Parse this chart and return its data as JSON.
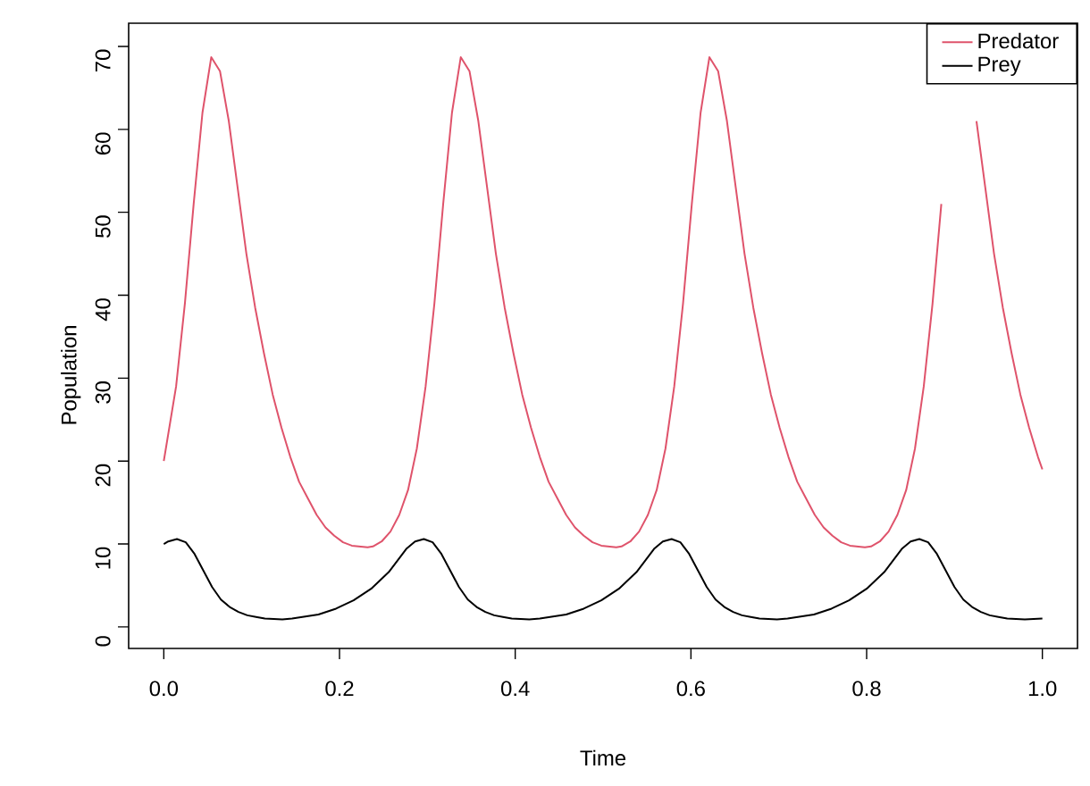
{
  "chart_data": {
    "type": "line",
    "xlabel": "Time",
    "ylabel": "Population",
    "xlim": [
      -0.04,
      1.04
    ],
    "ylim": [
      -2.6,
      72.8
    ],
    "xticks": [
      {
        "value": 0,
        "label": "0.0"
      },
      {
        "value": 0.2,
        "label": "0.2"
      },
      {
        "value": 0.4,
        "label": "0.4"
      },
      {
        "value": 0.6,
        "label": "0.6"
      },
      {
        "value": 0.8,
        "label": "0.8"
      },
      {
        "value": 1,
        "label": "1.0"
      }
    ],
    "yticks": [
      0,
      10,
      20,
      30,
      40,
      50,
      60,
      70
    ],
    "legend": "top right",
    "series": [
      {
        "name": "Predator",
        "color": "#df536b",
        "x": [
          0,
          0.014,
          0.024,
          0.034,
          0.044,
          0.054,
          0.064,
          0.074,
          0.084,
          0.094,
          0.104,
          0.114,
          0.124,
          0.134,
          0.144,
          0.154,
          0.164,
          0.174,
          0.184,
          0.194,
          0.204,
          0.214,
          0.232,
          0.238,
          0.248,
          0.258,
          0.268,
          0.278,
          0.288,
          0.298,
          0.308,
          0.318,
          0.328,
          0.338,
          0.348,
          0.358,
          0.368,
          0.378,
          0.388,
          0.398,
          0.408,
          0.418,
          0.428,
          0.438,
          0.448,
          0.458,
          0.468,
          0.478,
          0.488,
          0.498,
          0.515,
          0.521,
          0.531,
          0.541,
          0.551,
          0.561,
          0.571,
          0.581,
          0.591,
          0.601,
          0.611,
          0.621,
          0.631,
          0.641,
          0.651,
          0.661,
          0.671,
          0.681,
          0.691,
          0.701,
          0.711,
          0.721,
          0.731,
          0.741,
          0.751,
          0.761,
          0.771,
          0.781,
          0.798,
          0.805,
          0.815,
          0.825,
          0.835,
          0.845,
          0.855,
          0.865,
          0.875,
          0.885,
          0.895,
          0.905,
          0.915,
          0.925,
          0.935,
          0.945,
          0.955,
          0.965,
          0.975,
          0.985,
          0.995,
          1.0
        ],
        "values": [
          20,
          29,
          39,
          51,
          62,
          68.7,
          67,
          61,
          53,
          45,
          38.5,
          33,
          28,
          24,
          20.5,
          17.5,
          15.5,
          13.5,
          12,
          11,
          10.2,
          9.8,
          9.6,
          9.7,
          10.3,
          11.5,
          13.5,
          16.5,
          21.5,
          29,
          39,
          51,
          62,
          68.7,
          67,
          61,
          53,
          45,
          38.5,
          33,
          28,
          24,
          20.5,
          17.5,
          15.5,
          13.5,
          12,
          11,
          10.2,
          9.8,
          9.6,
          9.7,
          10.3,
          11.5,
          13.5,
          16.5,
          21.5,
          29,
          39,
          51,
          62,
          68.7,
          67,
          61,
          53,
          45,
          38.5,
          33,
          28,
          24,
          20.5,
          17.5,
          15.5,
          13.5,
          12,
          11,
          10.2,
          9.8,
          9.6,
          9.7,
          10.3,
          11.5,
          13.5,
          16.5,
          21.5,
          29,
          39,
          51,
          null,
          null,
          null,
          61,
          53,
          45,
          38.5,
          33,
          28,
          24,
          20.5,
          19
        ]
      },
      {
        "name": "Prey",
        "color": "#000000",
        "x": [
          0,
          0.005,
          0.015,
          0.025,
          0.035,
          0.045,
          0.055,
          0.065,
          0.075,
          0.085,
          0.095,
          0.105,
          0.115,
          0.135,
          0.146,
          0.176,
          0.196,
          0.216,
          0.236,
          0.256,
          0.266,
          0.276,
          0.286,
          0.296,
          0.306,
          0.316,
          0.326,
          0.336,
          0.346,
          0.356,
          0.366,
          0.376,
          0.386,
          0.396,
          0.416,
          0.428,
          0.458,
          0.478,
          0.498,
          0.518,
          0.538,
          0.548,
          0.558,
          0.568,
          0.578,
          0.588,
          0.598,
          0.608,
          0.618,
          0.628,
          0.638,
          0.648,
          0.658,
          0.668,
          0.678,
          0.698,
          0.71,
          0.74,
          0.76,
          0.78,
          0.8,
          0.82,
          0.83,
          0.84,
          0.85,
          0.86,
          0.87,
          0.88,
          0.89,
          0.9,
          0.91,
          0.92,
          0.93,
          0.94,
          0.95,
          0.96,
          0.98,
          1.0
        ],
        "values": [
          10,
          10.3,
          10.6,
          10.2,
          8.8,
          6.8,
          4.8,
          3.3,
          2.4,
          1.8,
          1.4,
          1.2,
          1,
          0.9,
          1,
          1.5,
          2.2,
          3.2,
          4.6,
          6.6,
          8,
          9.4,
          10.3,
          10.6,
          10.2,
          8.8,
          6.8,
          4.8,
          3.3,
          2.4,
          1.8,
          1.4,
          1.2,
          1,
          0.9,
          1,
          1.5,
          2.2,
          3.2,
          4.6,
          6.6,
          8,
          9.4,
          10.3,
          10.6,
          10.2,
          8.8,
          6.8,
          4.8,
          3.3,
          2.4,
          1.8,
          1.4,
          1.2,
          1,
          0.9,
          1,
          1.5,
          2.2,
          3.2,
          4.6,
          6.6,
          8,
          9.4,
          10.3,
          10.6,
          10.2,
          8.8,
          6.8,
          4.8,
          3.3,
          2.4,
          1.8,
          1.4,
          1.2,
          1,
          0.9,
          1
        ]
      }
    ]
  }
}
